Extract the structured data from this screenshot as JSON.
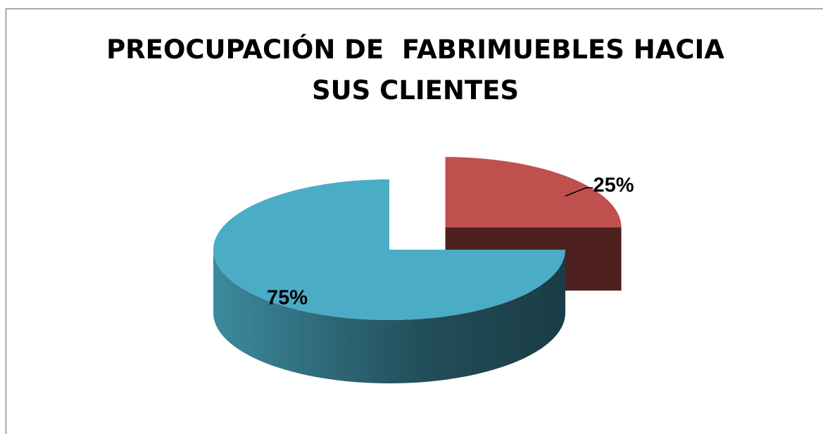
{
  "chart_data": {
    "type": "pie",
    "title": "PREOCUPACIÓN DE  FABRIMUEBLES HACIA SUS CLIENTES",
    "values": [
      25,
      75
    ],
    "value_labels": [
      "25%",
      "75%"
    ],
    "colors": [
      "#c0504d",
      "#4bacc6"
    ]
  }
}
